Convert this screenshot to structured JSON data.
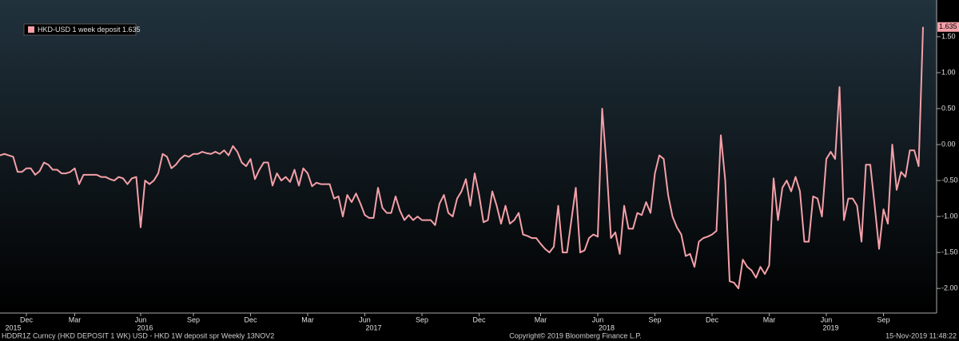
{
  "chart_data": {
    "type": "line",
    "series": [
      {
        "name": "HKD-USD 1 week deposit 1.635",
        "color": "#f4a0a8",
        "values": [
          -0.15,
          -0.13,
          -0.15,
          -0.17,
          -0.38,
          -0.38,
          -0.33,
          -0.33,
          -0.42,
          -0.37,
          -0.25,
          -0.28,
          -0.35,
          -0.35,
          -0.4,
          -0.4,
          -0.38,
          -0.33,
          -0.55,
          -0.42,
          -0.42,
          -0.42,
          -0.42,
          -0.45,
          -0.45,
          -0.48,
          -0.5,
          -0.45,
          -0.47,
          -0.55,
          -0.47,
          -0.45,
          -1.15,
          -0.5,
          -0.55,
          -0.5,
          -0.4,
          -0.13,
          -0.17,
          -0.33,
          -0.28,
          -0.2,
          -0.15,
          -0.17,
          -0.13,
          -0.13,
          -0.1,
          -0.12,
          -0.13,
          -0.1,
          -0.13,
          -0.08,
          -0.15,
          -0.02,
          -0.1,
          -0.25,
          -0.3,
          -0.2,
          -0.48,
          -0.35,
          -0.25,
          -0.25,
          -0.57,
          -0.4,
          -0.5,
          -0.45,
          -0.52,
          -0.35,
          -0.57,
          -0.33,
          -0.4,
          -0.58,
          -0.53,
          -0.55,
          -0.55,
          -0.55,
          -0.75,
          -0.72,
          -1.0,
          -0.7,
          -0.8,
          -0.68,
          -0.82,
          -0.98,
          -1.02,
          -1.02,
          -0.6,
          -0.88,
          -0.95,
          -0.95,
          -0.72,
          -0.92,
          -1.05,
          -0.98,
          -1.05,
          -1.0,
          -1.05,
          -1.05,
          -1.05,
          -1.12,
          -0.82,
          -0.7,
          -0.95,
          -1.0,
          -0.75,
          -0.65,
          -0.48,
          -0.85,
          -0.4,
          -0.7,
          -1.08,
          -1.05,
          -0.65,
          -0.85,
          -1.1,
          -0.85,
          -1.1,
          -1.05,
          -0.95,
          -1.25,
          -1.27,
          -1.3,
          -1.3,
          -1.38,
          -1.45,
          -1.5,
          -1.42,
          -0.85,
          -1.5,
          -1.5,
          -1.05,
          -0.6,
          -1.5,
          -1.47,
          -1.3,
          -1.25,
          -1.28,
          0.5,
          -0.3,
          -1.3,
          -1.22,
          -1.52,
          -0.85,
          -1.17,
          -1.17,
          -0.95,
          -0.98,
          -0.8,
          -0.95,
          -0.4,
          -0.15,
          -0.2,
          -0.7,
          -1.0,
          -1.15,
          -1.25,
          -1.55,
          -1.52,
          -1.7,
          -1.35,
          -1.3,
          -1.28,
          -1.25,
          -1.2,
          0.13,
          -0.5,
          -1.9,
          -1.92,
          -2.0,
          -1.6,
          -1.7,
          -1.75,
          -1.85,
          -1.7,
          -1.8,
          -1.68,
          -0.47,
          -1.05,
          -0.6,
          -0.5,
          -0.65,
          -0.45,
          -0.65,
          -1.35,
          -1.35,
          -0.72,
          -0.75,
          -1.0,
          -0.2,
          -0.1,
          -0.2,
          0.8,
          -1.05,
          -0.75,
          -0.75,
          -0.85,
          -1.35,
          -0.28,
          -0.28,
          -0.85,
          -1.45,
          -0.9,
          -1.1,
          0.0,
          -0.63,
          -0.38,
          -0.45,
          -0.08,
          -0.08,
          -0.3,
          1.635
        ]
      }
    ],
    "xlim": [
      0,
      211
    ],
    "xticks": [
      {
        "value": 6,
        "label": "Dec"
      },
      {
        "value": 17,
        "label": "Mar"
      },
      {
        "value": 32,
        "label": "Jun"
      },
      {
        "value": 44,
        "label": "Sep"
      },
      {
        "value": 57,
        "label": "Dec"
      },
      {
        "value": 70,
        "label": "Mar"
      },
      {
        "value": 83,
        "label": "Jun"
      },
      {
        "value": 96,
        "label": "Sep"
      },
      {
        "value": 109,
        "label": "Dec"
      },
      {
        "value": 123,
        "label": "Mar"
      },
      {
        "value": 136,
        "label": "Jun"
      },
      {
        "value": 149,
        "label": "Sep"
      },
      {
        "value": 162,
        "label": "Dec"
      },
      {
        "value": 175,
        "label": "Mar"
      },
      {
        "value": 188,
        "label": "Jun"
      },
      {
        "value": 201,
        "label": "Sep"
      }
    ],
    "year_ticks": [
      {
        "value": 3,
        "label": "2015"
      },
      {
        "value": 33,
        "label": "2016"
      },
      {
        "value": 85,
        "label": "2017"
      },
      {
        "value": 138,
        "label": "2018"
      },
      {
        "value": 189,
        "label": "2019"
      }
    ],
    "ylim": [
      -2.32,
      2.01
    ],
    "yticks": [
      {
        "value": -2,
        "label": "-2.00"
      },
      {
        "value": -1.5,
        "label": "-1.50"
      },
      {
        "value": -1,
        "label": "-1.00"
      },
      {
        "value": -0.5,
        "label": "-0.50"
      },
      {
        "value": 0,
        "label": "0.00"
      },
      {
        "value": 0.5,
        "label": "0.50"
      },
      {
        "value": 1,
        "label": "1.00"
      },
      {
        "value": 1.5,
        "label": "1.50"
      }
    ],
    "legend": "upper left",
    "footer": {
      "left": "HDDR1Z Curncy (HKD DEPOSIT    1 WK) USD - HKD 1W deposit spr  Weekly 13NOV2",
      "center": "Copyright© 2019 Bloomberg Finance L.P.",
      "right": "15-Nov-2019 11:48:22"
    }
  }
}
